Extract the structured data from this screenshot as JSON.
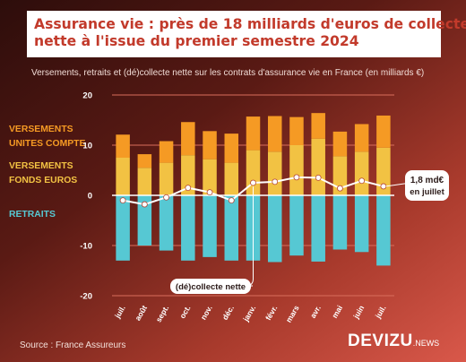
{
  "title": {
    "line1": "Assurance vie : près de 18 milliards d'euros de collecte",
    "line2": "nette à l'issue du premier semestre 2024"
  },
  "subtitle": "Versements, retraits et (dé)collecte nette sur les contrats d'assurance vie en France (en milliards €)",
  "legend": {
    "uc_line1": "VERSEMENTS",
    "uc_line2": "UNITES COMPTE",
    "fe_line1": "VERSEMENTS",
    "fe_line2": "FONDS EUROS",
    "retraits": "RETRAITS"
  },
  "source": "Source : France Assureurs",
  "brand": {
    "name": "DEVIZU",
    "suffix": ".NEWS"
  },
  "colors": {
    "unites_compte": "#f59a24",
    "fonds_euros": "#f2c243",
    "retraits": "#56c8d3",
    "collecte_nette": "#ffffff",
    "grid": "#d96e5c"
  },
  "chart_data": {
    "type": "bar",
    "categories": [
      "juil.",
      "août",
      "sept.",
      "oct.",
      "nov.",
      "déc.",
      "janv.",
      "févr.",
      "mars",
      "avr.",
      "mai",
      "juin",
      "juil."
    ],
    "series": [
      {
        "name": "VERSEMENTS FONDS EUROS",
        "values": [
          7.5,
          5.5,
          6.5,
          8.0,
          7.2,
          6.5,
          9.0,
          8.7,
          10.0,
          11.3,
          7.8,
          8.7,
          9.5
        ]
      },
      {
        "name": "VERSEMENTS UNITES COMPTE",
        "values": [
          4.6,
          2.7,
          4.3,
          6.6,
          5.6,
          5.8,
          6.7,
          7.1,
          5.6,
          5.1,
          4.9,
          5.5,
          6.4
        ]
      },
      {
        "name": "RETRAITS",
        "values": [
          -13.0,
          -10.0,
          -11.0,
          -13.0,
          -12.3,
          -13.0,
          -13.0,
          -13.3,
          -12.0,
          -13.2,
          -10.8,
          -11.3,
          -14.0
        ]
      },
      {
        "name": "(dé)collecte nette",
        "values": [
          -1.0,
          -1.8,
          -0.4,
          1.5,
          0.6,
          -1.0,
          2.5,
          2.7,
          3.6,
          3.5,
          1.4,
          2.9,
          1.8
        ]
      }
    ],
    "ylim": [
      -20,
      20
    ],
    "yticks": [
      -20,
      -10,
      0,
      10,
      20
    ],
    "grid": true,
    "annotations": {
      "last_value_line1": "1,8 md€",
      "last_value_line2": "en juillet",
      "net_label": "(dé)collecte nette"
    }
  }
}
